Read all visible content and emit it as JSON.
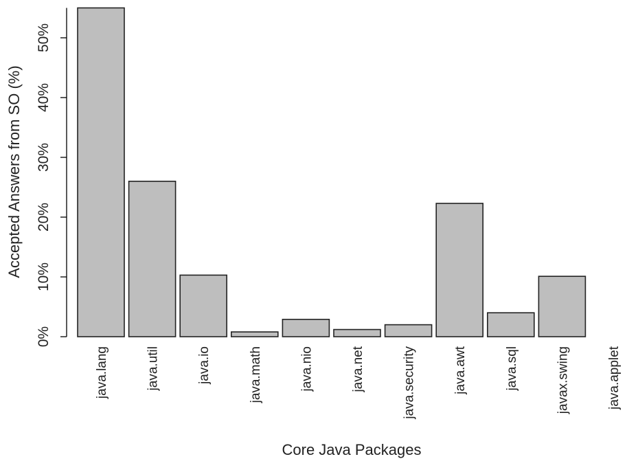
{
  "chart_data": {
    "type": "bar",
    "title": "",
    "xlabel": "Core Java Packages",
    "ylabel": "Accepted Answers from SO (%)",
    "categories": [
      "java.lang",
      "java.util",
      "java.io",
      "java.math",
      "java.nio",
      "java.net",
      "java.security",
      "java.awt",
      "java.sql",
      "javax.swing",
      "java.applet"
    ],
    "values": [
      55,
      26,
      10.3,
      0.8,
      2.9,
      1.2,
      2.0,
      22.3,
      4.0,
      10.1,
      0.0
    ],
    "ylim": [
      0,
      55
    ],
    "yticks": [
      0,
      10,
      20,
      30,
      40,
      50
    ],
    "ytick_labels": [
      "0%",
      "10%",
      "20%",
      "30%",
      "40%",
      "50%"
    ],
    "grid": false,
    "legend": "none",
    "colors": {
      "bar_fill": "#bebebe",
      "bar_stroke": "#222222",
      "axis": "#000000",
      "text": "#222222"
    }
  }
}
